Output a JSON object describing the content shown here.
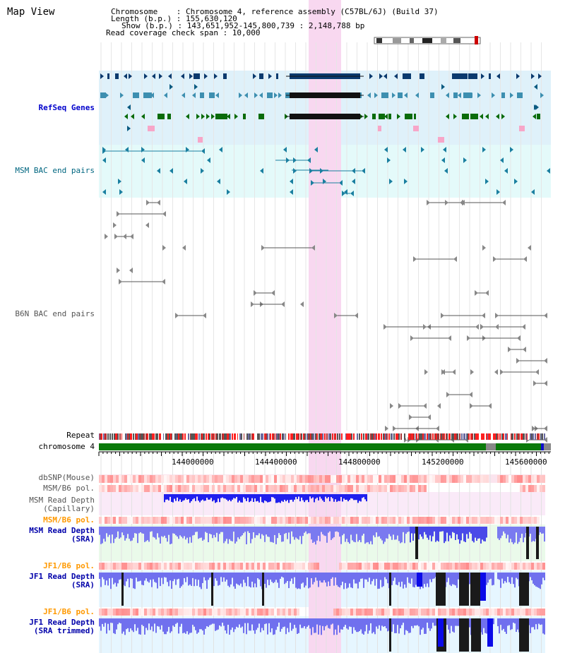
{
  "page": {
    "title": "Map View"
  },
  "info": {
    "chromosome": "Chromosome    : Chromosome 4, reference assembly (C57BL/6J) (Build 37)",
    "length": "Length (b.p.) : 155,630,120",
    "show": "Show (b.p.) : 143,651,952-145,800,739 : 2,148,788 bp",
    "span": "Read coverage check span : 10,000"
  },
  "tracks": {
    "refseq": "RefSeq Genes",
    "msm_bac": "MSM BAC end pairs",
    "b6n_bac": "B6N BAC end pairs",
    "repeat": "Repeat",
    "chromosome": "chromosome 4",
    "dbsnp": "dbSNP(Mouse)",
    "msm_pol1": "MSM/B6 pol.",
    "msm_depth_cap1": "MSM Read Depth",
    "msm_depth_cap2": "(Capillary)",
    "msm_pol2": "MSM/B6 pol.",
    "msm_depth_sra1": "MSM Read Depth",
    "msm_depth_sra2": "(SRA)",
    "jf1_pol1": "JF1/B6 pol.",
    "jf1_depth_sra1": "JF1 Read Depth",
    "jf1_depth_sra2": "(SRA)",
    "jf1_pol2": "JF1/B6 pol.",
    "jf1_depth_trim1": "JF1 Read Depth",
    "jf1_depth_trim2": "(SRA trimmed)"
  },
  "ruler": {
    "ticks": [
      "144000000",
      "144400000",
      "144800000",
      "145200000",
      "145600000"
    ]
  },
  "colors": {
    "refseq_label": "#0000cc",
    "msm_bac_label": "#006680",
    "b6n_bac_label": "#555555",
    "sra_label": "#0000aa",
    "pol_orange": "#ff9900",
    "highlight": "#f8d8f0"
  }
}
